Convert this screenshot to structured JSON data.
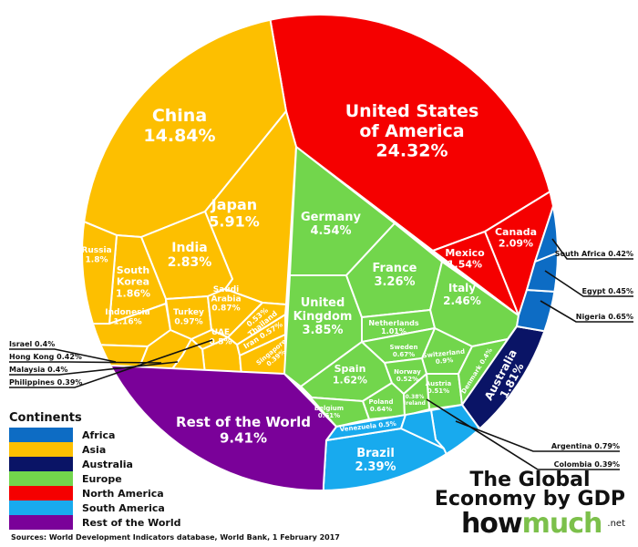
{
  "colors": {
    "Africa": "#0d6cc4",
    "Asia": "#fdbf00",
    "Australia": "#0a1466",
    "Europe": "#72d64c",
    "North America": "#f50000",
    "South America": "#18aaee",
    "Rest of the World": "#7a0199"
  },
  "legend": {
    "title": "Continents",
    "items": [
      "Africa",
      "Asia",
      "Australia",
      "Europe",
      "North America",
      "South America",
      "Rest of the World"
    ]
  },
  "title_lines": [
    "The Global",
    "Economy by GDP"
  ],
  "logo": {
    "part1": "how",
    "part2": "much",
    "suffix": ".net"
  },
  "source": "Sources: World Development Indicators database, World Bank, 1 February 2017",
  "chart_data": {
    "type": "treemap",
    "title": "The Global Economy by GDP",
    "unit": "% of world GDP",
    "cells": [
      {
        "name": "United States of America",
        "lines": [
          "United States",
          "of America"
        ],
        "value": "24.32%",
        "continent": "North America"
      },
      {
        "name": "Canada",
        "lines": [
          "Canada"
        ],
        "value": "2.09%",
        "continent": "North America"
      },
      {
        "name": "Mexico",
        "lines": [
          "Mexico"
        ],
        "value": "1.54%",
        "continent": "North America"
      },
      {
        "name": "China",
        "lines": [
          "China"
        ],
        "value": "14.84%",
        "continent": "Asia"
      },
      {
        "name": "Japan",
        "lines": [
          "Japan"
        ],
        "value": "5.91%",
        "continent": "Asia"
      },
      {
        "name": "India",
        "lines": [
          "India"
        ],
        "value": "2.83%",
        "continent": "Asia"
      },
      {
        "name": "South Korea",
        "lines": [
          "South",
          "Korea"
        ],
        "value": "1.86%",
        "continent": "Asia"
      },
      {
        "name": "Russia",
        "lines": [
          "Russia"
        ],
        "value": "1.8%",
        "continent": "Asia"
      },
      {
        "name": "Indonesia",
        "lines": [
          "Indonesia"
        ],
        "value": "1.16%",
        "continent": "Asia"
      },
      {
        "name": "Turkey",
        "lines": [
          "Turkey"
        ],
        "value": "0.97%",
        "continent": "Asia"
      },
      {
        "name": "Saudi Arabia",
        "lines": [
          "Saudi",
          "Arabia"
        ],
        "value": "0.87%",
        "continent": "Asia"
      },
      {
        "name": "Iran",
        "lines": [
          "Iran"
        ],
        "value": "0.57%",
        "continent": "Asia"
      },
      {
        "name": "Thailand",
        "lines": [
          "Thailand"
        ],
        "value": "0.53%",
        "continent": "Asia"
      },
      {
        "name": "UAE",
        "lines": [
          "UAE"
        ],
        "value": "0.5%",
        "continent": "Asia"
      },
      {
        "name": "Singapore",
        "lines": [
          "Singapore"
        ],
        "value": "0.39%",
        "continent": "Asia"
      },
      {
        "name": "Hong Kong",
        "lines": [
          "Hong Kong"
        ],
        "value": "0.42%",
        "continent": "Asia",
        "callout": true
      },
      {
        "name": "Israel",
        "lines": [
          "Israel"
        ],
        "value": "0.4%",
        "continent": "Asia",
        "callout": true
      },
      {
        "name": "Malaysia",
        "lines": [
          "Malaysia"
        ],
        "value": "0.4%",
        "continent": "Asia",
        "callout": true
      },
      {
        "name": "Philippines",
        "lines": [
          "Philippines"
        ],
        "value": "0.39%",
        "continent": "Asia",
        "callout": true
      },
      {
        "name": "Germany",
        "lines": [
          "Germany"
        ],
        "value": "4.54%",
        "continent": "Europe"
      },
      {
        "name": "United Kingdom",
        "lines": [
          "United",
          "Kingdom"
        ],
        "value": "3.85%",
        "continent": "Europe"
      },
      {
        "name": "France",
        "lines": [
          "France"
        ],
        "value": "3.26%",
        "continent": "Europe"
      },
      {
        "name": "Italy",
        "lines": [
          "Italy"
        ],
        "value": "2.46%",
        "continent": "Europe"
      },
      {
        "name": "Spain",
        "lines": [
          "Spain"
        ],
        "value": "1.62%",
        "continent": "Europe"
      },
      {
        "name": "Netherlands",
        "lines": [
          "Netherlands"
        ],
        "value": "1.01%",
        "continent": "Europe"
      },
      {
        "name": "Switzerland",
        "lines": [
          "Switzerland"
        ],
        "value": "0.9%",
        "continent": "Europe"
      },
      {
        "name": "Sweden",
        "lines": [
          "Sweden"
        ],
        "value": "0.67%",
        "continent": "Europe"
      },
      {
        "name": "Poland",
        "lines": [
          "Poland"
        ],
        "value": "0.64%",
        "continent": "Europe"
      },
      {
        "name": "Belgium",
        "lines": [
          "Belgium"
        ],
        "value": "0.61%",
        "continent": "Europe"
      },
      {
        "name": "Norway",
        "lines": [
          "Norway"
        ],
        "value": "0.52%",
        "continent": "Europe"
      },
      {
        "name": "Austria",
        "lines": [
          "Austria"
        ],
        "value": "0.51%",
        "continent": "Europe"
      },
      {
        "name": "Denmark",
        "lines": [
          "Denmark"
        ],
        "value": "0.4%",
        "continent": "Europe"
      },
      {
        "name": "Ireland",
        "lines": [
          "Ireland"
        ],
        "value": "0.38%",
        "continent": "Europe"
      },
      {
        "name": "Australia",
        "lines": [
          "Australia"
        ],
        "value": "1.81%",
        "continent": "Australia"
      },
      {
        "name": "Brazil",
        "lines": [
          "Brazil"
        ],
        "value": "2.39%",
        "continent": "South America"
      },
      {
        "name": "Argentina",
        "lines": [
          "Argentina"
        ],
        "value": "0.79%",
        "continent": "South America",
        "callout": true
      },
      {
        "name": "Venezuela",
        "lines": [
          "Venezuela"
        ],
        "value": "0.5%",
        "continent": "South America"
      },
      {
        "name": "Colombia",
        "lines": [
          "Colombia"
        ],
        "value": "0.39%",
        "continent": "South America",
        "callout": true
      },
      {
        "name": "Nigeria",
        "lines": [
          "Nigeria"
        ],
        "value": "0.65%",
        "continent": "Africa",
        "callout": true
      },
      {
        "name": "Egypt",
        "lines": [
          "Egypt"
        ],
        "value": "0.45%",
        "continent": "Africa",
        "callout": true
      },
      {
        "name": "South Africa",
        "lines": [
          "South Africa"
        ],
        "value": "0.42%",
        "continent": "Africa",
        "callout": true
      },
      {
        "name": "Rest of the World",
        "lines": [
          "Rest of the World"
        ],
        "value": "9.41%",
        "continent": "Rest of the World"
      }
    ]
  }
}
